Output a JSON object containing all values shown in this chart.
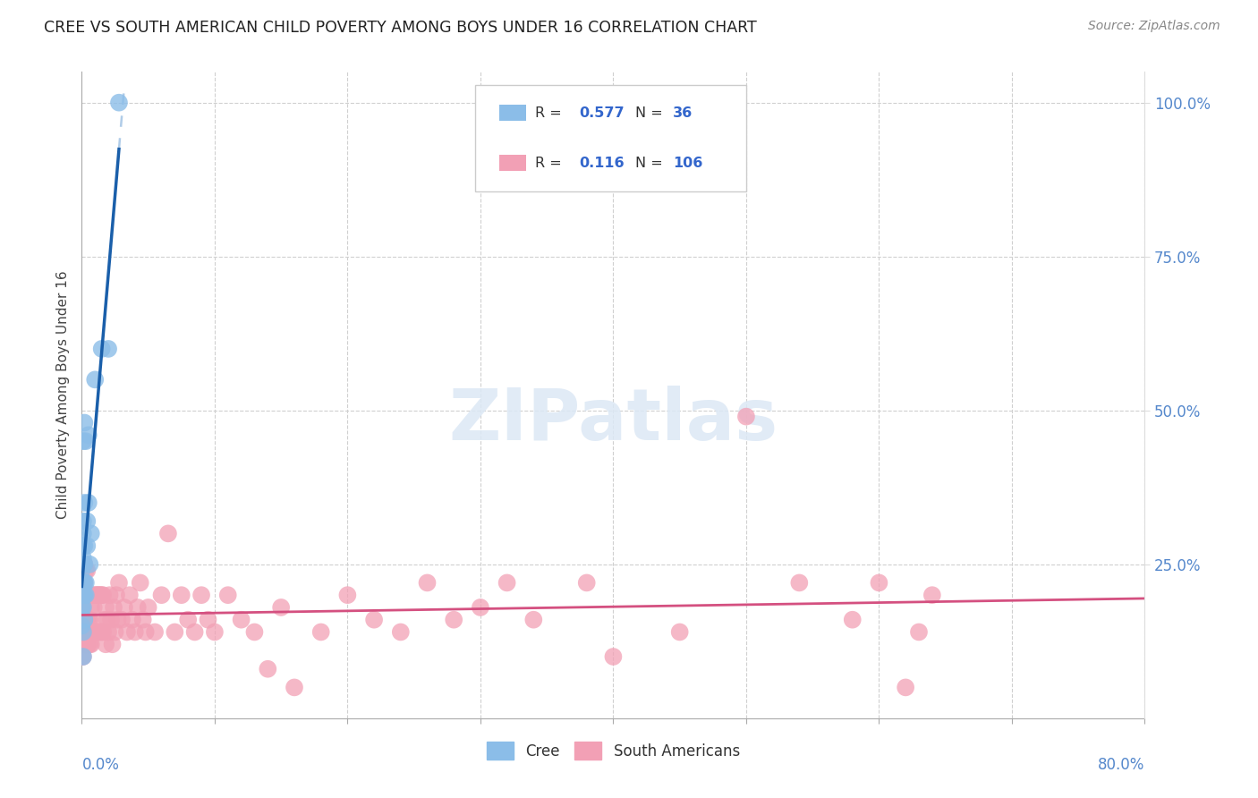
{
  "title": "CREE VS SOUTH AMERICAN CHILD POVERTY AMONG BOYS UNDER 16 CORRELATION CHART",
  "source": "Source: ZipAtlas.com",
  "ylabel": "Child Poverty Among Boys Under 16",
  "cree_R": 0.577,
  "cree_N": 36,
  "sa_R": 0.116,
  "sa_N": 106,
  "cree_color": "#8bbde8",
  "sa_color": "#f2a0b5",
  "cree_line_color": "#1a5faa",
  "sa_line_color": "#d45080",
  "dashed_line_color": "#b0cce8",
  "background_color": "#ffffff",
  "xmin": 0.0,
  "xmax": 0.8,
  "ymin": 0.0,
  "ymax": 1.05,
  "cree_x": [
    0.0,
    0.0,
    0.0,
    0.0,
    0.0,
    0.001,
    0.001,
    0.001,
    0.001,
    0.001,
    0.001,
    0.001,
    0.001,
    0.001,
    0.001,
    0.001,
    0.002,
    0.002,
    0.002,
    0.002,
    0.002,
    0.002,
    0.002,
    0.003,
    0.003,
    0.003,
    0.004,
    0.004,
    0.005,
    0.005,
    0.006,
    0.007,
    0.01,
    0.015,
    0.02,
    0.028
  ],
  "cree_y": [
    0.15,
    0.18,
    0.2,
    0.22,
    0.24,
    0.1,
    0.14,
    0.18,
    0.2,
    0.22,
    0.25,
    0.26,
    0.28,
    0.3,
    0.32,
    0.45,
    0.16,
    0.2,
    0.22,
    0.25,
    0.28,
    0.35,
    0.48,
    0.2,
    0.22,
    0.45,
    0.28,
    0.32,
    0.35,
    0.46,
    0.25,
    0.3,
    0.55,
    0.6,
    0.6,
    1.0
  ],
  "sa_x": [
    0.0,
    0.0,
    0.0,
    0.001,
    0.001,
    0.001,
    0.001,
    0.001,
    0.002,
    0.002,
    0.002,
    0.002,
    0.002,
    0.003,
    0.003,
    0.003,
    0.003,
    0.004,
    0.004,
    0.004,
    0.004,
    0.005,
    0.005,
    0.005,
    0.006,
    0.006,
    0.006,
    0.007,
    0.007,
    0.008,
    0.008,
    0.009,
    0.009,
    0.01,
    0.01,
    0.011,
    0.011,
    0.012,
    0.012,
    0.013,
    0.013,
    0.014,
    0.014,
    0.015,
    0.015,
    0.016,
    0.016,
    0.017,
    0.018,
    0.018,
    0.019,
    0.02,
    0.021,
    0.022,
    0.023,
    0.024,
    0.025,
    0.026,
    0.027,
    0.028,
    0.03,
    0.032,
    0.034,
    0.036,
    0.038,
    0.04,
    0.042,
    0.044,
    0.046,
    0.048,
    0.05,
    0.055,
    0.06,
    0.065,
    0.07,
    0.075,
    0.08,
    0.085,
    0.09,
    0.095,
    0.1,
    0.11,
    0.12,
    0.13,
    0.14,
    0.15,
    0.16,
    0.18,
    0.2,
    0.22,
    0.24,
    0.26,
    0.28,
    0.3,
    0.32,
    0.34,
    0.38,
    0.4,
    0.45,
    0.5,
    0.54,
    0.58,
    0.6,
    0.62,
    0.63,
    0.64
  ],
  "sa_y": [
    0.1,
    0.14,
    0.18,
    0.1,
    0.14,
    0.18,
    0.22,
    0.25,
    0.12,
    0.16,
    0.2,
    0.22,
    0.25,
    0.12,
    0.16,
    0.2,
    0.24,
    0.12,
    0.16,
    0.2,
    0.24,
    0.12,
    0.16,
    0.2,
    0.12,
    0.16,
    0.2,
    0.12,
    0.18,
    0.14,
    0.2,
    0.14,
    0.18,
    0.14,
    0.2,
    0.14,
    0.2,
    0.14,
    0.2,
    0.14,
    0.2,
    0.14,
    0.2,
    0.14,
    0.2,
    0.14,
    0.2,
    0.16,
    0.12,
    0.18,
    0.16,
    0.14,
    0.2,
    0.16,
    0.12,
    0.18,
    0.14,
    0.2,
    0.16,
    0.22,
    0.16,
    0.18,
    0.14,
    0.2,
    0.16,
    0.14,
    0.18,
    0.22,
    0.16,
    0.14,
    0.18,
    0.14,
    0.2,
    0.3,
    0.14,
    0.2,
    0.16,
    0.14,
    0.2,
    0.16,
    0.14,
    0.2,
    0.16,
    0.14,
    0.08,
    0.18,
    0.05,
    0.14,
    0.2,
    0.16,
    0.14,
    0.22,
    0.16,
    0.18,
    0.22,
    0.16,
    0.22,
    0.1,
    0.14,
    0.49,
    0.22,
    0.16,
    0.22,
    0.05,
    0.14,
    0.2
  ]
}
